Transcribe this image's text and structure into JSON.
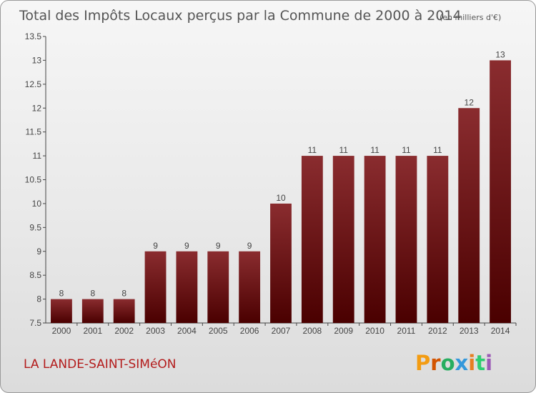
{
  "chart_data": {
    "type": "bar",
    "title": "Total des Impôts Locaux perçus par la Commune de 2000 à 2014",
    "subtitle": "(en milliers d'€)",
    "categories": [
      "2000",
      "2001",
      "2002",
      "2003",
      "2004",
      "2005",
      "2006",
      "2007",
      "2008",
      "2009",
      "2010",
      "2011",
      "2012",
      "2013",
      "2014"
    ],
    "values": [
      8,
      8,
      8,
      9,
      9,
      9,
      9,
      10,
      11,
      11,
      11,
      11,
      11,
      12,
      13
    ],
    "ylim": [
      7.5,
      13.5
    ],
    "yticks": [
      "7.5",
      "8",
      "8.5",
      "9",
      "9.5",
      "10",
      "10.5",
      "11",
      "11.5",
      "12",
      "12.5",
      "13",
      "13.5"
    ],
    "xlabel": "",
    "ylabel": "",
    "grid": false
  },
  "footer": {
    "commune": "LA LANDE-SAINT-SIMéON",
    "logo": "Proxiti"
  },
  "colors": {
    "bar_top": "#8a2c2f",
    "bar_bottom": "#4a0000",
    "commune_text": "#b31b1b"
  }
}
